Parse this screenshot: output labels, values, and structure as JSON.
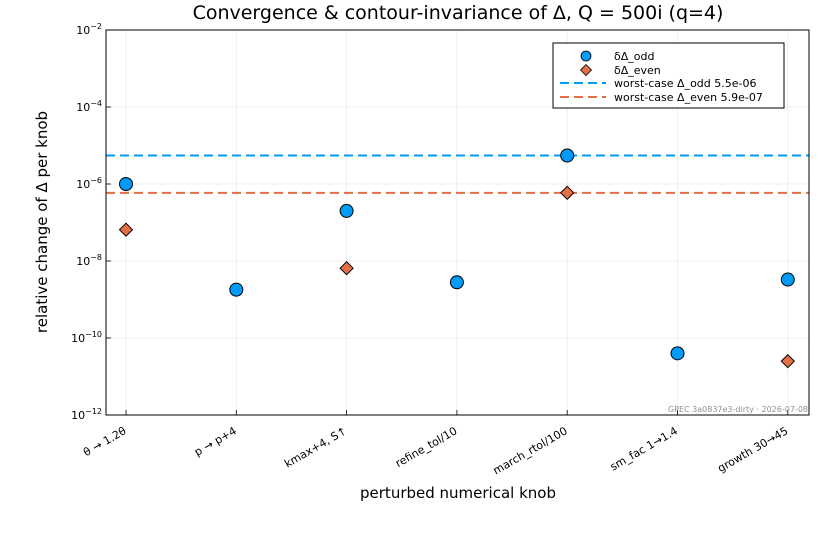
{
  "chart_data": {
    "type": "scatter",
    "title": "Convergence & contour-invariance of Δ,  Q = 500i  (q=4)",
    "xlabel": "perturbed numerical knob",
    "ylabel": "relative change of Δ per knob",
    "yscale": "log",
    "ylim": [
      1e-12,
      0.01
    ],
    "yticks": [
      {
        "value": 1e-12,
        "base": "10",
        "exp": "−12"
      },
      {
        "value": 1e-10,
        "base": "10",
        "exp": "−10"
      },
      {
        "value": 1e-08,
        "base": "10",
        "exp": "−8"
      },
      {
        "value": 1e-06,
        "base": "10",
        "exp": "−6"
      },
      {
        "value": 0.0001,
        "base": "10",
        "exp": "−4"
      },
      {
        "value": 0.01,
        "base": "10",
        "exp": "−2"
      }
    ],
    "categories": [
      "θ → 1.2θ",
      "p → p+4",
      "kmax+4, S↑",
      "refine_tol/10",
      "march_rtol/100",
      "sm_fac 1→1.4",
      "growth 30→45"
    ],
    "series": [
      {
        "name": "δΔ_odd",
        "marker": "circle",
        "color": "#009AF9",
        "values": [
          1e-06,
          1.8e-09,
          2e-07,
          2.8e-09,
          5.5e-06,
          4e-11,
          3.3e-09
        ]
      },
      {
        "name": "δΔ_even",
        "marker": "diamond",
        "color": "#E26F46",
        "values": [
          6.5e-08,
          null,
          6.5e-09,
          null,
          5.9e-07,
          null,
          2.5e-11
        ]
      }
    ],
    "hlines": [
      {
        "name": "worst-case Δ_odd  5.5e-06",
        "value": 5.5e-06,
        "color": "#009AF9",
        "style": "dashed"
      },
      {
        "name": "worst-case Δ_even  5.9e-07",
        "value": 5.9e-07,
        "color": "#E26F46",
        "style": "dashed"
      }
    ],
    "grid": true,
    "legend_position": "top-right",
    "annotation": "GPEC 3a0837e3-dirty · 2026-07-08"
  }
}
